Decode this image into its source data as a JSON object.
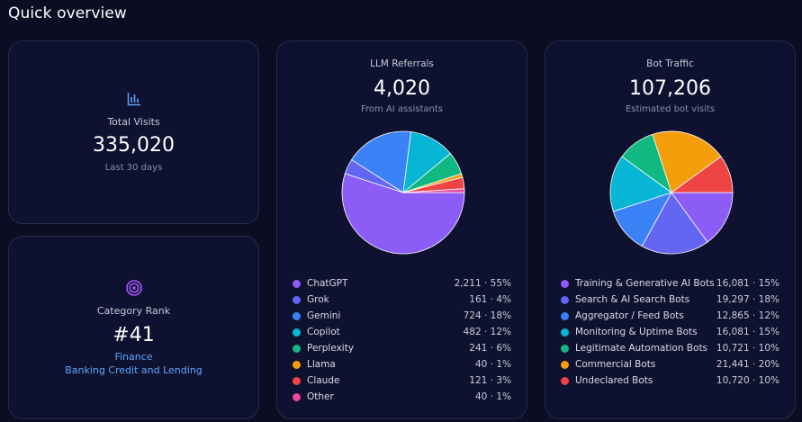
{
  "page": {
    "title": "Quick overview"
  },
  "colors": {
    "background": "#0b0d22",
    "card": "#0e1230",
    "border": "#262b4d",
    "accent_blue": "#60a5fa",
    "accent_purple": "#a855f7"
  },
  "visits": {
    "icon": "bar-chart-icon",
    "label": "Total Visits",
    "value": "335,020",
    "sub": "Last 30 days"
  },
  "rank": {
    "icon": "target-icon",
    "label": "Category Rank",
    "value": "#41",
    "category": "Finance",
    "subcategory": "Banking Credit and Lending"
  },
  "llm": {
    "title": "LLM Referrals",
    "value": "4,020",
    "sub": "From AI assistants",
    "legend": [
      {
        "name": "ChatGPT",
        "value": "2,211 · 55%",
        "color": "#8b5cf6"
      },
      {
        "name": "Grok",
        "value": "161 · 4%",
        "color": "#6366f1"
      },
      {
        "name": "Gemini",
        "value": "724 · 18%",
        "color": "#3b82f6"
      },
      {
        "name": "Copilot",
        "value": "482 · 12%",
        "color": "#06b6d4"
      },
      {
        "name": "Perplexity",
        "value": "241 · 6%",
        "color": "#10b981"
      },
      {
        "name": "Llama",
        "value": "40 · 1%",
        "color": "#f59e0b"
      },
      {
        "name": "Claude",
        "value": "121 · 3%",
        "color": "#ef4444"
      },
      {
        "name": "Other",
        "value": "40 · 1%",
        "color": "#ec4899"
      }
    ]
  },
  "bot": {
    "title": "Bot Traffic",
    "value": "107,206",
    "sub": "Estimated bot visits",
    "legend": [
      {
        "name": "Training & Generative AI Bots",
        "value": "16,081 · 15%",
        "color": "#8b5cf6"
      },
      {
        "name": "Search & AI Search Bots",
        "value": "19,297 · 18%",
        "color": "#6366f1"
      },
      {
        "name": "Aggregator / Feed Bots",
        "value": "12,865 · 12%",
        "color": "#3b82f6"
      },
      {
        "name": "Monitoring & Uptime Bots",
        "value": "16,081 · 15%",
        "color": "#06b6d4"
      },
      {
        "name": "Legitimate Automation Bots",
        "value": "10,721 · 10%",
        "color": "#10b981"
      },
      {
        "name": "Commercial Bots",
        "value": "21,441 · 20%",
        "color": "#f59e0b"
      },
      {
        "name": "Undeclared Bots",
        "value": "10,720 · 10%",
        "color": "#ef4444"
      }
    ]
  },
  "chart_data": [
    {
      "type": "pie",
      "title": "LLM Referrals",
      "categories": [
        "ChatGPT",
        "Grok",
        "Gemini",
        "Copilot",
        "Perplexity",
        "Llama",
        "Claude",
        "Other"
      ],
      "values": [
        2211,
        161,
        724,
        482,
        241,
        40,
        121,
        40
      ],
      "colors": [
        "#8b5cf6",
        "#6366f1",
        "#3b82f6",
        "#06b6d4",
        "#10b981",
        "#f59e0b",
        "#ef4444",
        "#ec4899"
      ]
    },
    {
      "type": "pie",
      "title": "Bot Traffic",
      "categories": [
        "Training & Generative AI Bots",
        "Search & AI Search Bots",
        "Aggregator / Feed Bots",
        "Monitoring & Uptime Bots",
        "Legitimate Automation Bots",
        "Commercial Bots",
        "Undeclared Bots"
      ],
      "values": [
        16081,
        19297,
        12865,
        16081,
        10721,
        21441,
        10720
      ],
      "colors": [
        "#8b5cf6",
        "#6366f1",
        "#3b82f6",
        "#06b6d4",
        "#10b981",
        "#f59e0b",
        "#ef4444"
      ]
    }
  ]
}
